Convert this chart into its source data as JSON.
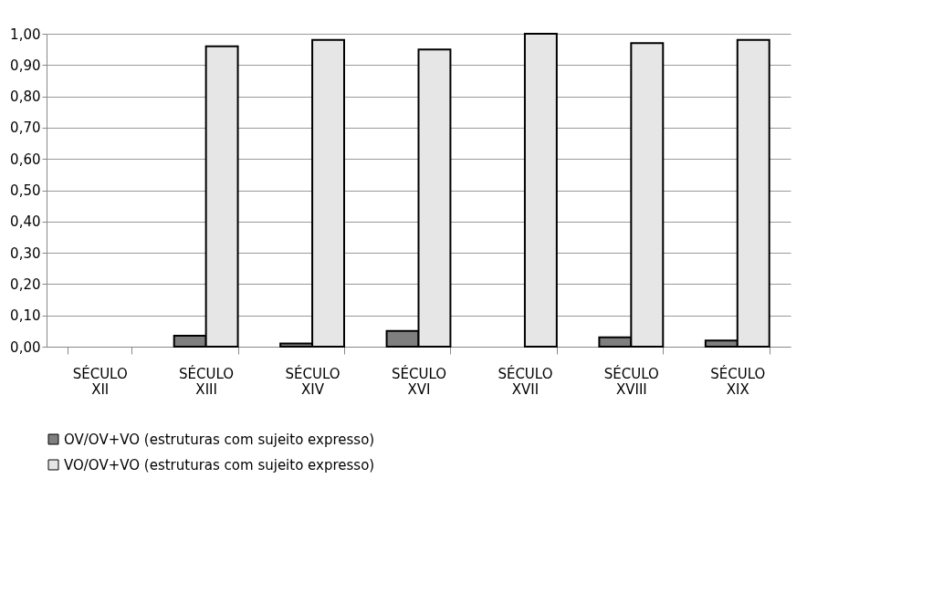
{
  "chart_data": {
    "type": "bar",
    "categories": [
      "SÉCULO XII",
      "SÉCULO XIII",
      "SÉCULO XIV",
      "SÉCULO XVI",
      "SÉCULO XVII",
      "SÉCULO XVIII",
      "SÉCULO XIX"
    ],
    "series": [
      {
        "name": "OV/OV+VO (estruturas com sujeito expresso)",
        "color": "#7f7f7f",
        "values": [
          0,
          0.035,
          0.01,
          0.05,
          0,
          0.03,
          0.02
        ]
      },
      {
        "name": "VO/OV+VO (estruturas com sujeito expresso)",
        "color": "#e6e6e6",
        "values": [
          0,
          0.96,
          0.98,
          0.95,
          1.0,
          0.97,
          0.98
        ]
      }
    ],
    "ylim": [
      0,
      1
    ],
    "yticks": [
      {
        "value": 0,
        "label": "0,00"
      },
      {
        "value": 0.1,
        "label": "0,10"
      },
      {
        "value": 0.2,
        "label": "0,20"
      },
      {
        "value": 0.3,
        "label": "0,30"
      },
      {
        "value": 0.4,
        "label": "0,40"
      },
      {
        "value": 0.5,
        "label": "0,50"
      },
      {
        "value": 0.6,
        "label": "0,60"
      },
      {
        "value": 0.7,
        "label": "0,70"
      },
      {
        "value": 0.8,
        "label": "0,80"
      },
      {
        "value": 0.9,
        "label": "0,90"
      },
      {
        "value": 1,
        "label": "1,00"
      }
    ],
    "grid": "y",
    "legend": "bottom"
  }
}
